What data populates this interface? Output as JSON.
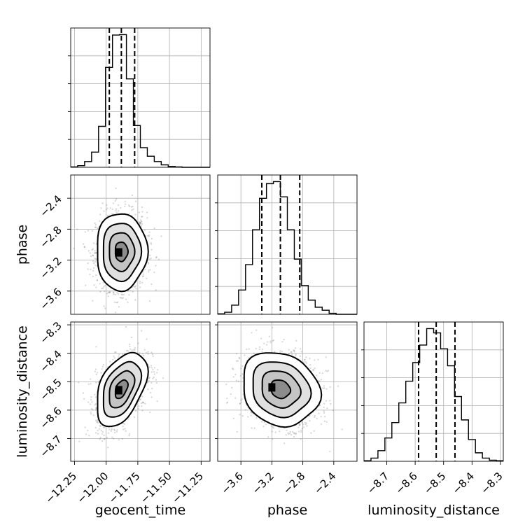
{
  "chart_data": {
    "type": "scatter",
    "figure_type": "corner",
    "parameters": [
      "geocent_time",
      "phase",
      "luminosity_distance"
    ],
    "axis_labels": {
      "x": [
        "geocent_time",
        "phase",
        "luminosity_distance"
      ],
      "y": [
        "",
        "phase",
        "luminosity_distance"
      ]
    },
    "ranges": {
      "geocent_time": [
        -12.28,
        -11.18
      ],
      "phase": [
        -3.9,
        -2.1
      ],
      "luminosity_distance": [
        -8.78,
        -8.29
      ]
    },
    "ticks": {
      "geocent_time": [
        "−12.25",
        "−12.00",
        "−11.75",
        "−11.50",
        "−11.25"
      ],
      "phase": [
        "−3.6",
        "−3.2",
        "−2.8",
        "−2.4"
      ],
      "luminosity_distance": [
        "−8.7",
        "−8.6",
        "−8.5",
        "−8.4",
        "−8.3"
      ]
    },
    "tick_values": {
      "geocent_time": [
        -12.25,
        -12.0,
        -11.75,
        -11.5,
        -11.25
      ],
      "phase": [
        -3.6,
        -3.2,
        -2.8,
        -2.4
      ],
      "luminosity_distance": [
        -8.7,
        -8.6,
        -8.5,
        -8.4,
        -8.3
      ]
    },
    "quantiles": {
      "geocent_time": [
        -11.975,
        -11.88,
        -11.775
      ],
      "phase": [
        -3.33,
        -3.09,
        -2.84
      ],
      "luminosity_distance": [
        -8.588,
        -8.526,
        -8.46
      ]
    },
    "histograms": {
      "geocent_time": {
        "edges": [
          -12.28,
          -12.225,
          -12.17,
          -12.115,
          -12.06,
          -12.005,
          -11.95,
          -11.895,
          -11.84,
          -11.785,
          -11.73,
          -11.675,
          -11.62,
          -11.565,
          -11.51,
          -11.455,
          -11.4,
          -11.345,
          -11.29,
          -11.235,
          -11.18
        ],
        "counts": [
          1,
          4,
          14,
          37,
          100,
          244,
          323,
          324,
          216,
          102,
          48,
          27,
          14,
          6,
          2,
          1,
          0,
          0,
          0,
          0
        ]
      },
      "phase": {
        "edges": [
          -3.9,
          -3.81,
          -3.72,
          -3.63,
          -3.54,
          -3.45,
          -3.36,
          -3.27,
          -3.18,
          -3.09,
          -3.0,
          -2.91,
          -2.82,
          -2.73,
          -2.64,
          -2.55,
          -2.46,
          -2.37,
          -2.28,
          -2.19,
          -2.1
        ],
        "counts": [
          1,
          4,
          18,
          48,
          98,
          167,
          229,
          258,
          262,
          232,
          167,
          109,
          57,
          28,
          14,
          8,
          2,
          0,
          0,
          0
        ]
      },
      "luminosity_distance": {
        "edges": [
          -8.78,
          -8.7555,
          -8.731,
          -8.7065,
          -8.682,
          -8.6575,
          -8.633,
          -8.6085,
          -8.584,
          -8.5595,
          -8.535,
          -8.5105,
          -8.486,
          -8.4615,
          -8.437,
          -8.4125,
          -8.388,
          -8.3635,
          -8.339,
          -8.3145,
          -8.29
        ],
        "counts": [
          1,
          6,
          20,
          44,
          73,
          110,
          151,
          186,
          219,
          250,
          242,
          212,
          180,
          122,
          78,
          41,
          16,
          6,
          2,
          1
        ]
      }
    },
    "pairs": [
      {
        "x": "geocent_time",
        "y": "phase",
        "x_mean": -11.88,
        "y_mean": -3.09,
        "x_sd": 0.1,
        "y_sd": 0.25,
        "correlation": 0.0,
        "peak": [
          -11.9,
          -3.1
        ]
      },
      {
        "x": "geocent_time",
        "y": "luminosity_distance",
        "x_mean": -11.88,
        "y_mean": -8.526,
        "x_sd": 0.1,
        "y_sd": 0.065,
        "correlation": 0.45,
        "peak": [
          -11.9,
          -8.53
        ]
      },
      {
        "x": "phase",
        "y": "luminosity_distance",
        "x_mean": -3.09,
        "y_mean": -8.526,
        "x_sd": 0.25,
        "y_sd": 0.065,
        "correlation": -0.15,
        "peak": [
          -3.2,
          -8.52
        ]
      }
    ],
    "contour_levels_sigma": [
      0.5,
      1.0,
      1.5,
      2.0
    ],
    "grid": true,
    "legend": "none"
  }
}
